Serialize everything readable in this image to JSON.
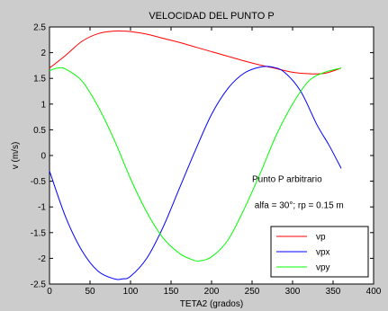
{
  "chart_data": {
    "type": "line",
    "title": "VELOCIDAD DEL PUNTO P",
    "xlabel": "TETA2 (grados)",
    "ylabel": "v  (m/s)",
    "xlim": [
      0,
      400
    ],
    "ylim": [
      -2.5,
      2.5
    ],
    "xticks": [
      0,
      50,
      100,
      150,
      200,
      250,
      300,
      350,
      400
    ],
    "yticks": [
      2.5,
      2,
      1.5,
      1,
      0.5,
      0,
      -0.5,
      -1,
      -1.5,
      -2,
      -2.5
    ],
    "grid": false,
    "legend_position": "bottom-right",
    "annotations": [
      "Punto P arbitrario",
      "alfa = 30°; rp = 0.15 m"
    ],
    "series": [
      {
        "name": "vp",
        "color": "#ff0000",
        "x": [
          0,
          20,
          40,
          60,
          80,
          90,
          100,
          120,
          140,
          160,
          180,
          200,
          220,
          240,
          260,
          280,
          300,
          320,
          340,
          360
        ],
        "y": [
          1.7,
          1.95,
          2.22,
          2.37,
          2.42,
          2.42,
          2.41,
          2.36,
          2.28,
          2.2,
          2.11,
          2.02,
          1.93,
          1.84,
          1.76,
          1.69,
          1.62,
          1.59,
          1.6,
          1.7
        ]
      },
      {
        "name": "vpx",
        "color": "#0000ff",
        "x": [
          0,
          20,
          40,
          60,
          80,
          90,
          100,
          120,
          140,
          160,
          180,
          200,
          220,
          240,
          260,
          275,
          290,
          310,
          330,
          345,
          360
        ],
        "y": [
          -0.3,
          -1.2,
          -1.85,
          -2.25,
          -2.4,
          -2.4,
          -2.35,
          -2.0,
          -1.4,
          -0.65,
          0.1,
          0.8,
          1.3,
          1.6,
          1.72,
          1.72,
          1.62,
          1.25,
          0.6,
          0.2,
          -0.25
        ]
      },
      {
        "name": "vpy",
        "color": "#00ff00",
        "x": [
          0,
          10,
          20,
          40,
          60,
          80,
          100,
          120,
          140,
          160,
          175,
          185,
          200,
          220,
          240,
          260,
          280,
          300,
          320,
          340,
          360
        ],
        "y": [
          1.65,
          1.7,
          1.68,
          1.45,
          0.95,
          0.3,
          -0.45,
          -1.1,
          -1.6,
          -1.9,
          -2.02,
          -2.05,
          -1.97,
          -1.65,
          -1.05,
          -0.35,
          0.4,
          1.0,
          1.45,
          1.62,
          1.7
        ]
      }
    ]
  }
}
